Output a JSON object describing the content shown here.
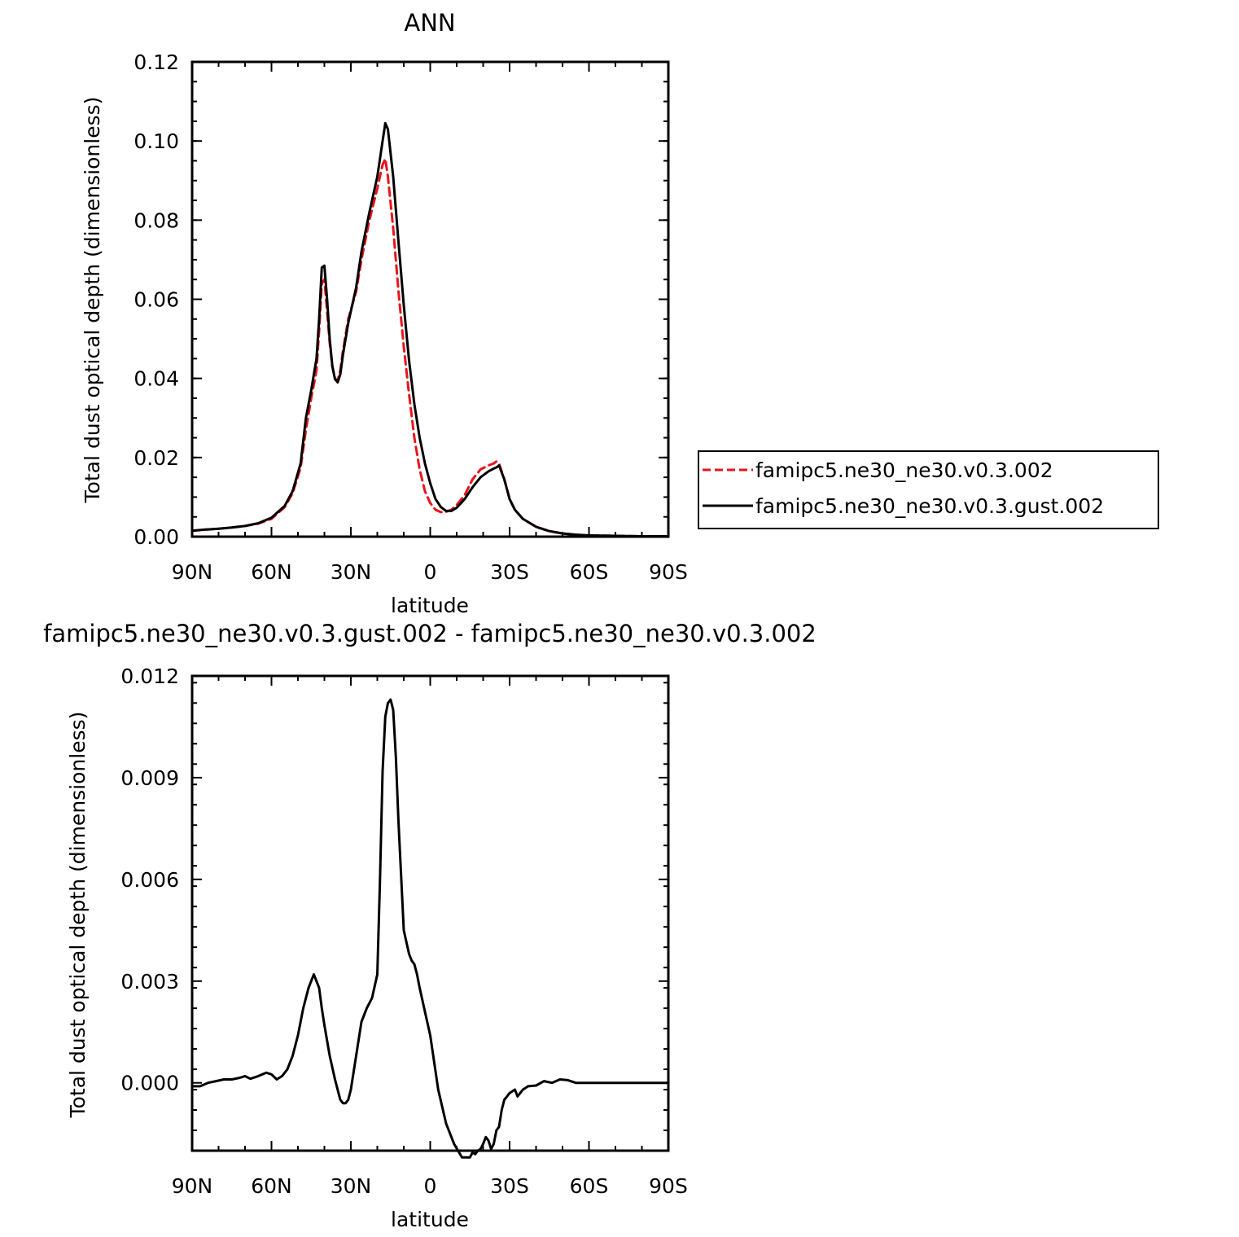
{
  "chart_data": [
    {
      "type": "line",
      "title": "ANN",
      "xlabel": "latitude",
      "ylabel": "Total dust optical depth (dimensionless)",
      "xlim": [
        90,
        -90
      ],
      "ylim": [
        0,
        0.12
      ],
      "x_ticks": [
        {
          "value": 90,
          "label": "90N"
        },
        {
          "value": 60,
          "label": "60N"
        },
        {
          "value": 30,
          "label": "30N"
        },
        {
          "value": 0,
          "label": "0"
        },
        {
          "value": -30,
          "label": "30S"
        },
        {
          "value": -60,
          "label": "60S"
        },
        {
          "value": -90,
          "label": "90S"
        }
      ],
      "y_ticks": [
        {
          "value": 0.0,
          "label": "0.00"
        },
        {
          "value": 0.02,
          "label": "0.02"
        },
        {
          "value": 0.04,
          "label": "0.04"
        },
        {
          "value": 0.06,
          "label": "0.06"
        },
        {
          "value": 0.08,
          "label": "0.08"
        },
        {
          "value": 0.1,
          "label": "0.10"
        },
        {
          "value": 0.12,
          "label": "0.12"
        }
      ],
      "legend": "right",
      "grid": false,
      "series": [
        {
          "name": "famipc5.ne30_ne30.v0.3.002",
          "color": "#e8141b",
          "dash": "dashed",
          "x": [
            90,
            85,
            80,
            75,
            70,
            65,
            60,
            55,
            52,
            49,
            47,
            45,
            43,
            42,
            41,
            40,
            39,
            38,
            37,
            36,
            35,
            34,
            33,
            31,
            28,
            26,
            23,
            20,
            18,
            17,
            16,
            14,
            12,
            10,
            8,
            6,
            4,
            2,
            0,
            -2,
            -4,
            -6,
            -8,
            -10,
            -13,
            -16,
            -19,
            -22,
            -24,
            -25,
            -26,
            -28,
            -30,
            -32,
            -35,
            -40,
            -45,
            -50,
            -55,
            -60,
            -70,
            -80,
            -90
          ],
          "y": [
            0.0015,
            0.0018,
            0.002,
            0.0023,
            0.0027,
            0.0033,
            0.0045,
            0.0075,
            0.011,
            0.0175,
            0.027,
            0.035,
            0.042,
            0.052,
            0.064,
            0.065,
            0.057,
            0.049,
            0.043,
            0.04,
            0.0395,
            0.042,
            0.047,
            0.055,
            0.062,
            0.07,
            0.08,
            0.088,
            0.094,
            0.0955,
            0.091,
            0.078,
            0.062,
            0.048,
            0.036,
            0.025,
            0.017,
            0.0115,
            0.0085,
            0.0068,
            0.0062,
            0.0063,
            0.0068,
            0.008,
            0.0105,
            0.0145,
            0.017,
            0.018,
            0.0185,
            0.019,
            0.0185,
            0.0145,
            0.0095,
            0.0068,
            0.0045,
            0.0025,
            0.0014,
            0.0008,
            0.0005,
            0.0003,
            0.0002,
            0.0001,
            0.0001
          ]
        },
        {
          "name": "famipc5.ne30_ne30.v0.3.gust.002",
          "color": "#000000",
          "dash": "solid",
          "x": [
            90,
            85,
            80,
            75,
            70,
            65,
            60,
            55,
            52,
            49,
            47,
            45,
            43,
            42,
            41,
            40,
            39,
            38,
            37,
            36,
            35,
            34,
            33,
            31,
            28,
            26,
            23,
            20,
            18,
            17,
            16,
            14,
            12,
            10,
            8,
            6,
            4,
            2,
            0,
            -2,
            -4,
            -6,
            -8,
            -10,
            -13,
            -16,
            -19,
            -22,
            -24,
            -25,
            -26,
            -28,
            -30,
            -32,
            -35,
            -40,
            -45,
            -50,
            -55,
            -60,
            -70,
            -80,
            -90
          ],
          "y": [
            0.0015,
            0.0018,
            0.002,
            0.0023,
            0.0027,
            0.0034,
            0.0048,
            0.0078,
            0.0115,
            0.0185,
            0.03,
            0.037,
            0.045,
            0.055,
            0.068,
            0.0685,
            0.06,
            0.05,
            0.043,
            0.0398,
            0.039,
            0.041,
            0.046,
            0.054,
            0.063,
            0.072,
            0.082,
            0.091,
            0.1,
            0.1045,
            0.103,
            0.091,
            0.0745,
            0.0585,
            0.0445,
            0.0335,
            0.025,
            0.0185,
            0.0135,
            0.0095,
            0.0075,
            0.0065,
            0.0065,
            0.0073,
            0.0095,
            0.0125,
            0.015,
            0.0165,
            0.0172,
            0.0175,
            0.018,
            0.0145,
            0.0095,
            0.0068,
            0.0045,
            0.0025,
            0.0014,
            0.0008,
            0.0005,
            0.0003,
            0.0002,
            0.0001,
            0.0001
          ]
        }
      ]
    },
    {
      "type": "line",
      "title": "famipc5.ne30_ne30.v0.3.gust.002 - famipc5.ne30_ne30.v0.3.002",
      "xlabel": "latitude",
      "ylabel": "Total dust optical depth (dimensionless)",
      "xlim": [
        90,
        -90
      ],
      "ylim": [
        -0.002,
        0.012
      ],
      "x_ticks": [
        {
          "value": 90,
          "label": "90N"
        },
        {
          "value": 60,
          "label": "60N"
        },
        {
          "value": 30,
          "label": "30N"
        },
        {
          "value": 0,
          "label": "0"
        },
        {
          "value": -30,
          "label": "30S"
        },
        {
          "value": -60,
          "label": "60S"
        },
        {
          "value": -90,
          "label": "90S"
        }
      ],
      "y_ticks": [
        {
          "value": 0.0,
          "label": "0.000"
        },
        {
          "value": 0.003,
          "label": "0.003"
        },
        {
          "value": 0.006,
          "label": "0.006"
        },
        {
          "value": 0.009,
          "label": "0.009"
        },
        {
          "value": 0.012,
          "label": "0.012"
        }
      ],
      "grid": false,
      "series": [
        {
          "color": "#000000",
          "dash": "solid",
          "x": [
            90,
            87,
            84,
            81,
            78,
            75,
            72,
            70,
            68,
            65,
            62,
            60,
            58,
            56,
            54,
            52,
            50,
            48,
            46,
            44,
            42,
            41,
            40,
            38,
            36,
            34,
            33,
            32,
            31,
            30,
            28,
            26,
            24,
            22,
            20,
            19,
            18,
            17,
            16,
            15,
            14,
            13,
            12,
            10,
            8,
            7,
            6,
            5,
            4,
            2,
            0,
            -3,
            -6,
            -9,
            -12,
            -15,
            -16,
            -17,
            -18,
            -19,
            -20,
            -21,
            -22,
            -23,
            -24,
            -25,
            -26,
            -27,
            -28,
            -29,
            -30,
            -32,
            -33,
            -34,
            -35,
            -37,
            -40,
            -43,
            -46,
            -49,
            -52,
            -55,
            -60,
            -65,
            -70,
            -75,
            -80,
            -85,
            -90
          ],
          "y": [
            -0.0001,
            -0.0001,
            0.0,
            5e-05,
            0.0001,
            0.0001,
            0.00015,
            0.0002,
            0.00012,
            0.0002,
            0.0003,
            0.00025,
            0.0001,
            0.0002,
            0.0004,
            0.0008,
            0.0014,
            0.0022,
            0.0028,
            0.0032,
            0.0028,
            0.0022,
            0.0017,
            0.0008,
            0.0001,
            -0.0005,
            -0.0006,
            -0.0006,
            -0.0005,
            -0.0002,
            0.0008,
            0.0018,
            0.0022,
            0.0025,
            0.0032,
            0.006,
            0.0092,
            0.0108,
            0.0112,
            0.0113,
            0.011,
            0.0096,
            0.0077,
            0.0045,
            0.0038,
            0.0036,
            0.0035,
            0.0032,
            0.0028,
            0.0021,
            0.0014,
            -0.0002,
            -0.0012,
            -0.0018,
            -0.0022,
            -0.0022,
            -0.00205,
            -0.0021,
            -0.002,
            -0.00195,
            -0.0018,
            -0.0016,
            -0.0017,
            -0.00195,
            -0.0018,
            -0.0014,
            -0.0013,
            -0.0008,
            -0.0005,
            -0.0004,
            -0.0003,
            -0.0002,
            -0.0004,
            -0.0003,
            -0.0002,
            -0.0001,
            -8e-05,
            5e-05,
            0.0,
            0.0001,
            8e-05,
            0.0,
            0.0,
            0.0,
            0.0,
            0.0,
            0.0,
            0.0,
            0.0
          ]
        }
      ]
    }
  ]
}
